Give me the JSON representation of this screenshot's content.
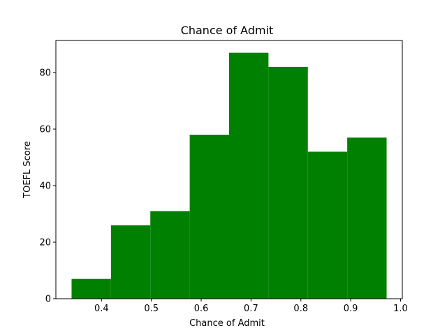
{
  "chart_data": {
    "type": "bar",
    "title": "Chance of Admit",
    "xlabel": "Chance of Admit",
    "ylabel": "TOEFL Score",
    "bin_edges": [
      0.34,
      0.419,
      0.498,
      0.577,
      0.656,
      0.735,
      0.814,
      0.893,
      0.972
    ],
    "values": [
      7,
      26,
      31,
      58,
      87,
      82,
      52,
      57
    ],
    "xlim": [
      0.3085,
      1.0035
    ],
    "ylim": [
      0,
      91.35
    ],
    "xticks": [
      0.4,
      0.5,
      0.6,
      0.7,
      0.8,
      0.9,
      1.0
    ],
    "xtick_labels": [
      "0.4",
      "0.5",
      "0.6",
      "0.7",
      "0.8",
      "0.9",
      "1.0"
    ],
    "yticks": [
      0,
      20,
      40,
      60,
      80
    ],
    "ytick_labels": [
      "0",
      "20",
      "40",
      "60",
      "80"
    ],
    "bar_color": "#008000",
    "grid": false
  }
}
